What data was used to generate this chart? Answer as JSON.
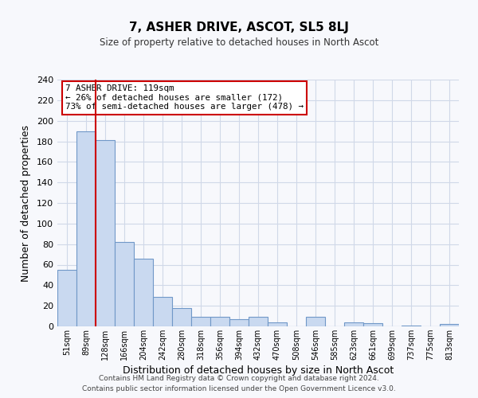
{
  "title": "7, ASHER DRIVE, ASCOT, SL5 8LJ",
  "subtitle": "Size of property relative to detached houses in North Ascot",
  "xlabel": "Distribution of detached houses by size in North Ascot",
  "ylabel": "Number of detached properties",
  "bar_labels": [
    "51sqm",
    "89sqm",
    "128sqm",
    "166sqm",
    "204sqm",
    "242sqm",
    "280sqm",
    "318sqm",
    "356sqm",
    "394sqm",
    "432sqm",
    "470sqm",
    "508sqm",
    "546sqm",
    "585sqm",
    "623sqm",
    "661sqm",
    "699sqm",
    "737sqm",
    "775sqm",
    "813sqm"
  ],
  "bar_heights": [
    55,
    190,
    181,
    82,
    66,
    29,
    18,
    9,
    9,
    7,
    9,
    4,
    0,
    9,
    0,
    4,
    3,
    0,
    1,
    0,
    2
  ],
  "bar_color": "#c9d9f0",
  "bar_edge_color": "#7098c8",
  "vline_x": 1.5,
  "annotation_title": "7 ASHER DRIVE: 119sqm",
  "annotation_line1": "← 26% of detached houses are smaller (172)",
  "annotation_line2": "73% of semi-detached houses are larger (478) →",
  "vline_color": "#cc0000",
  "annot_edge_color": "#cc0000",
  "ylim": [
    0,
    240
  ],
  "yticks": [
    0,
    20,
    40,
    60,
    80,
    100,
    120,
    140,
    160,
    180,
    200,
    220,
    240
  ],
  "footer1": "Contains HM Land Registry data © Crown copyright and database right 2024.",
  "footer2": "Contains public sector information licensed under the Open Government Licence v3.0.",
  "bg_color": "#f7f8fc",
  "grid_color": "#d0d8e8"
}
